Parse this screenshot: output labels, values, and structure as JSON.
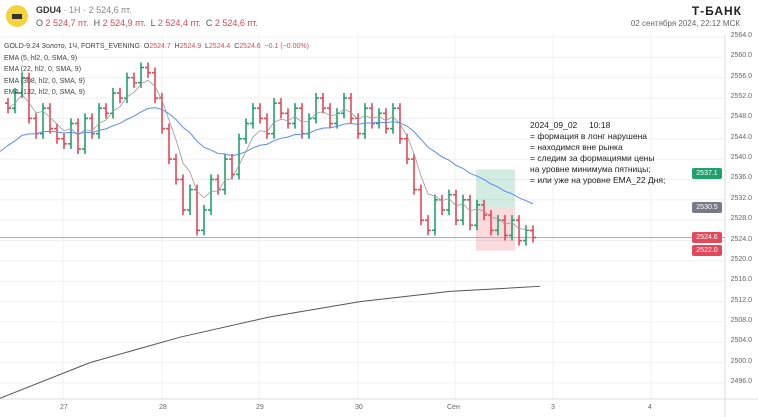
{
  "header": {
    "ticker": "GDU4",
    "interval": "1H",
    "price": "2 524,6 пт.",
    "o_label": "O",
    "o": "2 524,7 пт.",
    "h_label": "H",
    "h": "2 524,9 пт.",
    "l_label": "L",
    "l": "2 524,4 пт.",
    "c_label": "C",
    "c": "2 524,6 пт.",
    "brand": "Т-БАНК",
    "datetime": "02 сентября 2024, 22:12 МСК",
    "logo_icon": "gold-bar-icon"
  },
  "legend": {
    "title": "GOLD-9.24 Золото, 1Ч, FORTS_EVENING",
    "o": "O",
    "ov": "2524.7",
    "h": "H",
    "hv": "2524.9",
    "l": "L",
    "lv": "2524.4",
    "c": "C",
    "cv": "2524.6",
    "chg": "−0.1 (−0.00%)",
    "indicators": [
      "EMA (5, hl2, 0, SMA, 9)",
      "EMA (22, hl2, 0, SMA, 9)",
      "EMA (308, hl2, 0, SMA, 9)",
      "EMA (132, hl2, 0, SMA, 9)"
    ]
  },
  "annotation": "2024_09_02     10:18\n= формация в лонг нарушена\n= находимся вне рынка\n= следим за формациями цены\nна уровне минимума пятницы;\n= или уже на уровне EMA_22 Дня;",
  "price_axis": [
    "2564.0",
    "2560.0",
    "2556.0",
    "2552.0",
    "2548.0",
    "2544.0",
    "2540.0",
    "2536.0",
    "2532.0",
    "2528.0",
    "2524.0",
    "2520.0",
    "2516.0",
    "2512.0",
    "2508.0",
    "2504.0",
    "2500.0",
    "2496.0"
  ],
  "badges": [
    {
      "label": "2537.1",
      "value": 2537.1,
      "color": "#22a06b"
    },
    {
      "label": "2530.5",
      "value": 2530.5,
      "color": "#787b86"
    },
    {
      "label": "2524.6",
      "value": 2524.6,
      "color": "#e2495a"
    },
    {
      "label": "2522.0",
      "value": 2522.0,
      "color": "#e2495a"
    }
  ],
  "time_axis": [
    "27",
    "28",
    "29",
    "30",
    "Сен",
    "3",
    "4"
  ],
  "colors": {
    "up": "#22a06b",
    "down": "#e2495a",
    "ema22": "#5b8def",
    "ema5": "#999999",
    "ema308": "#555555",
    "level": "#f0a040"
  },
  "chart_data": {
    "type": "ohlc",
    "ylim": [
      2494,
      2566
    ],
    "closes": [
      2550,
      2553,
      2556,
      2548,
      2545,
      2550,
      2546,
      2544,
      2543,
      2547,
      2542,
      2548,
      2545,
      2550,
      2549,
      2553,
      2552,
      2556,
      2555,
      2558,
      2557,
      2552,
      2546,
      2540,
      2536,
      2530,
      2534,
      2526,
      2530,
      2536,
      2534,
      2540,
      2537,
      2544,
      2547,
      2550,
      2548,
      2545,
      2551,
      2549,
      2547,
      2550,
      2545,
      2548,
      2552,
      2550,
      2547,
      2549,
      2552,
      2548,
      2545,
      2550,
      2547,
      2549,
      2546,
      2550,
      2544,
      2540,
      2534,
      2528,
      2526,
      2532,
      2530,
      2533,
      2528,
      2532,
      2527,
      2531,
      2529,
      2526,
      2528,
      2525,
      2528,
      2524,
      2526,
      2524.6
    ],
    "ema308": [
      2493,
      2500,
      2505,
      2509,
      2512,
      2514,
      2515
    ],
    "level": 2524.6,
    "long_zone": {
      "top": 2538,
      "entry": 2530.5,
      "stop": 2522
    }
  }
}
